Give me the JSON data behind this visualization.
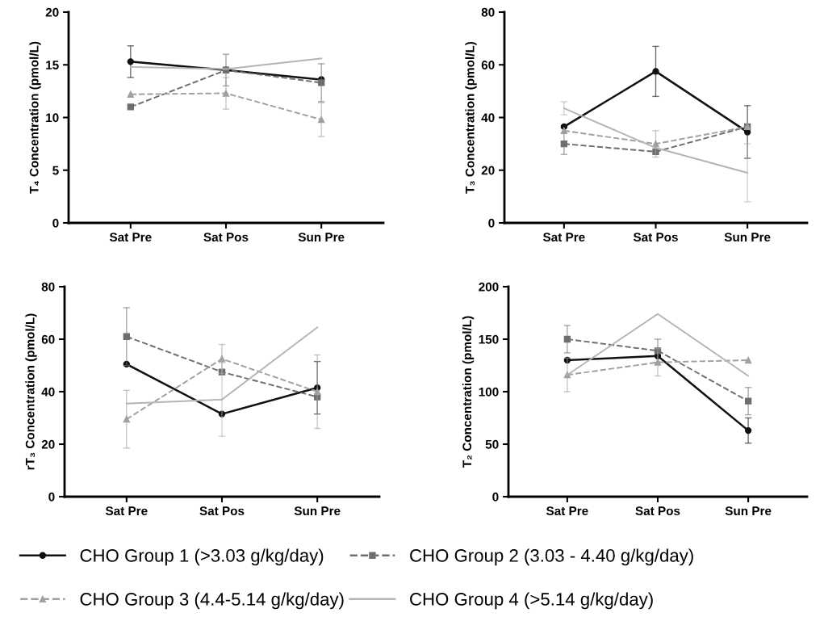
{
  "chart_data": [
    {
      "type": "line",
      "ylabel": "T₄ Concentration (pmol/L)",
      "categories": [
        "Sat Pre",
        "Sat Pos",
        "Sun Pre"
      ],
      "ylim": [
        0,
        20
      ],
      "yticks": [
        0,
        5,
        10,
        15,
        20
      ],
      "grid": false,
      "legend": "bottom",
      "series": [
        {
          "name": "CHO Group 1 (>3.03 g/kg/day)",
          "color": "#111111",
          "marker": "circle",
          "line_style": "solid",
          "values": [
            15.3,
            14.5,
            13.6
          ],
          "errors": [
            1.5,
            null,
            null
          ]
        },
        {
          "name": "CHO Group 2 (3.03 - 4.40 g/kg/day)",
          "color": "#6e6e6e",
          "marker": "square",
          "line_style": "dashed",
          "values": [
            11.0,
            14.5,
            13.3
          ],
          "errors": [
            null,
            1.5,
            1.8
          ]
        },
        {
          "name": "CHO Group 3 (4.4-5.14 g/kg/day)",
          "color": "#a0a0a0",
          "marker": "triangle",
          "line_style": "dashed",
          "values": [
            12.2,
            12.3,
            9.8
          ],
          "errors": [
            null,
            1.5,
            1.6
          ]
        },
        {
          "name": "CHO Group 4 (>5.14 g/kg/day)",
          "color": "#b4b4b4",
          "marker": "none",
          "line_style": "solid",
          "values": [
            14.8,
            14.6,
            15.6
          ],
          "errors": [
            null,
            null,
            null
          ]
        }
      ]
    },
    {
      "type": "line",
      "ylabel": "T₃ Concentration (pmol/L)",
      "categories": [
        "Sat Pre",
        "Sat Pos",
        "Sun Pre"
      ],
      "ylim": [
        0,
        80
      ],
      "yticks": [
        0,
        20,
        40,
        60,
        80
      ],
      "grid": false,
      "legend": false,
      "series": [
        {
          "color": "#111111",
          "marker": "circle",
          "line_style": "solid",
          "values": [
            36.5,
            57.5,
            34.5
          ],
          "errors": [
            null,
            9.5,
            10
          ]
        },
        {
          "color": "#6e6e6e",
          "marker": "square",
          "line_style": "dashed",
          "values": [
            30,
            27,
            36.5
          ],
          "errors": [
            4,
            null,
            null
          ]
        },
        {
          "color": "#a0a0a0",
          "marker": "triangle",
          "line_style": "dashed",
          "values": [
            35,
            30,
            36.5
          ],
          "errors": [
            null,
            5,
            null
          ]
        },
        {
          "color": "#b4b4b4",
          "marker": "none",
          "line_style": "solid",
          "values": [
            43.5,
            28.5,
            19
          ],
          "errors": [
            2.5,
            null,
            11
          ]
        }
      ]
    },
    {
      "type": "line",
      "ylabel": "rT₃ Concentration (pmol/L)",
      "categories": [
        "Sat Pre",
        "Sat Pos",
        "Sun Pre"
      ],
      "ylim": [
        0,
        80
      ],
      "yticks": [
        0,
        20,
        40,
        60,
        80
      ],
      "grid": false,
      "legend": false,
      "series": [
        {
          "color": "#111111",
          "marker": "circle",
          "line_style": "solid",
          "values": [
            50.5,
            31.5,
            41.5
          ],
          "errors": [
            null,
            null,
            10
          ]
        },
        {
          "color": "#6e6e6e",
          "marker": "square",
          "line_style": "dashed",
          "values": [
            61,
            47.5,
            38
          ],
          "errors": [
            11,
            null,
            null
          ]
        },
        {
          "color": "#a0a0a0",
          "marker": "triangle",
          "line_style": "dashed",
          "values": [
            29.5,
            52.5,
            40
          ],
          "errors": [
            11,
            5.5,
            14
          ]
        },
        {
          "color": "#b4b4b4",
          "marker": "none",
          "line_style": "solid",
          "values": [
            35.5,
            37,
            64.5
          ],
          "errors": [
            null,
            14,
            null
          ]
        }
      ]
    },
    {
      "type": "line",
      "ylabel": "T₂ Concentration (pmol/L)",
      "categories": [
        "Sat Pre",
        "Sat Pos",
        "Sun Pre"
      ],
      "ylim": [
        0,
        200
      ],
      "yticks": [
        0,
        50,
        100,
        150,
        200
      ],
      "grid": false,
      "legend": false,
      "series": [
        {
          "color": "#111111",
          "marker": "circle",
          "line_style": "solid",
          "values": [
            130,
            134,
            63
          ],
          "errors": [
            null,
            null,
            12
          ]
        },
        {
          "color": "#6e6e6e",
          "marker": "square",
          "line_style": "dashed",
          "values": [
            150,
            139,
            91
          ],
          "errors": [
            13,
            11,
            13
          ]
        },
        {
          "color": "#a0a0a0",
          "marker": "triangle",
          "line_style": "dashed",
          "values": [
            116,
            128,
            130
          ],
          "errors": [
            16,
            13,
            null
          ]
        },
        {
          "color": "#b4b4b4",
          "marker": "none",
          "line_style": "solid",
          "values": [
            116,
            174,
            115
          ],
          "errors": [
            null,
            null,
            null
          ]
        }
      ]
    }
  ]
}
